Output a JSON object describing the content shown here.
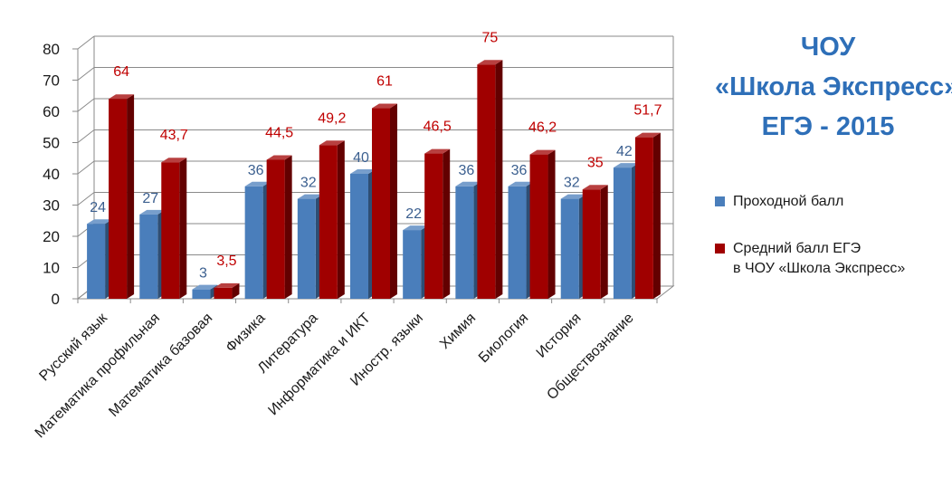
{
  "title": {
    "line1": "ЧОУ",
    "line2": "«Школа Экспресс»",
    "line3": "ЕГЭ - 2015"
  },
  "colors": {
    "series1": "#4a7ebb",
    "series2": "#a00000",
    "series1_label": "#3b5f8f",
    "series2_label": "#c00000",
    "title": "#2e6fb8"
  },
  "legend": {
    "placement": "right",
    "items": [
      {
        "line1": "Проходной балл",
        "line2": ""
      },
      {
        "line1": "Средний балл ЕГЭ",
        "line2": "в ЧОУ «Школа Экспресс»"
      }
    ]
  },
  "chart_data": {
    "type": "bar",
    "style": "3d-clustered-column",
    "categories": [
      "Русский язык",
      "Математика профильная",
      "Математика базовая",
      "Физика",
      "Литература",
      "Информатика и ИКТ",
      "Иностр. языки",
      "Химия",
      "Биология",
      "История",
      "Обществознание"
    ],
    "series": [
      {
        "name": "Проходной балл",
        "values": [
          24,
          27,
          3,
          36,
          32,
          40,
          22,
          36,
          36,
          32,
          42
        ],
        "labels": [
          "24",
          "27",
          "3",
          "36",
          "32",
          "40",
          "22",
          "36",
          "36",
          "32",
          "42"
        ]
      },
      {
        "name": "Средний балл ЕГЭ в ЧОУ «Школа Экспресс»",
        "values": [
          64,
          43.7,
          3.5,
          44.5,
          49.2,
          61,
          46.5,
          75,
          46.2,
          35,
          51.7
        ],
        "labels": [
          "64",
          "43,7",
          "3,5",
          "44,5",
          "49,2",
          "61",
          "46,5",
          "75",
          "46,2",
          "35",
          "51,7"
        ]
      }
    ],
    "yticks": [
      "0",
      "10",
      "20",
      "30",
      "40",
      "50",
      "60",
      "70",
      "80"
    ],
    "ylim": [
      0,
      80
    ],
    "grid": true
  }
}
